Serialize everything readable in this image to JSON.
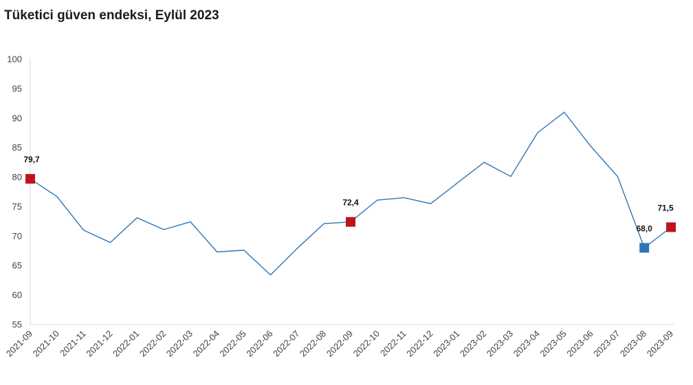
{
  "chart_data": {
    "type": "line",
    "title": "Tüketici güven endeksi, Eylül 2023",
    "categories": [
      "2021-09",
      "2021-10",
      "2021-11",
      "2021-12",
      "2022-01",
      "2022-02",
      "2022-03",
      "2022-04",
      "2022-05",
      "2022-06",
      "2022-07",
      "2022-08",
      "2022-09",
      "2022-10",
      "2022-11",
      "2022-12",
      "2023-01",
      "2023-02",
      "2023-03",
      "2023-04",
      "2023-05",
      "2023-06",
      "2023-07",
      "2023-08",
      "2023-09"
    ],
    "series": [
      {
        "values": [
          79.7,
          76.7,
          71.0,
          68.9,
          73.1,
          71.1,
          72.4,
          67.3,
          67.6,
          63.4,
          67.9,
          72.1,
          72.4,
          76.1,
          76.5,
          75.5,
          79.0,
          82.5,
          80.1,
          87.5,
          91.0,
          85.2,
          80.1,
          68.0,
          71.5
        ]
      }
    ],
    "ylim": [
      55,
      100
    ],
    "yticks": [
      55,
      60,
      65,
      70,
      75,
      80,
      85,
      90,
      95,
      100
    ],
    "grid": false,
    "line_color": "#2e75b6",
    "markers": [
      {
        "index": 0,
        "label": "79,7",
        "color": "#c0141c"
      },
      {
        "index": 12,
        "label": "72,4",
        "color": "#c0141c"
      },
      {
        "index": 23,
        "label": "68,0",
        "color": "#2e75b6"
      },
      {
        "index": 24,
        "label": "71,5",
        "color": "#c0141c"
      }
    ]
  }
}
